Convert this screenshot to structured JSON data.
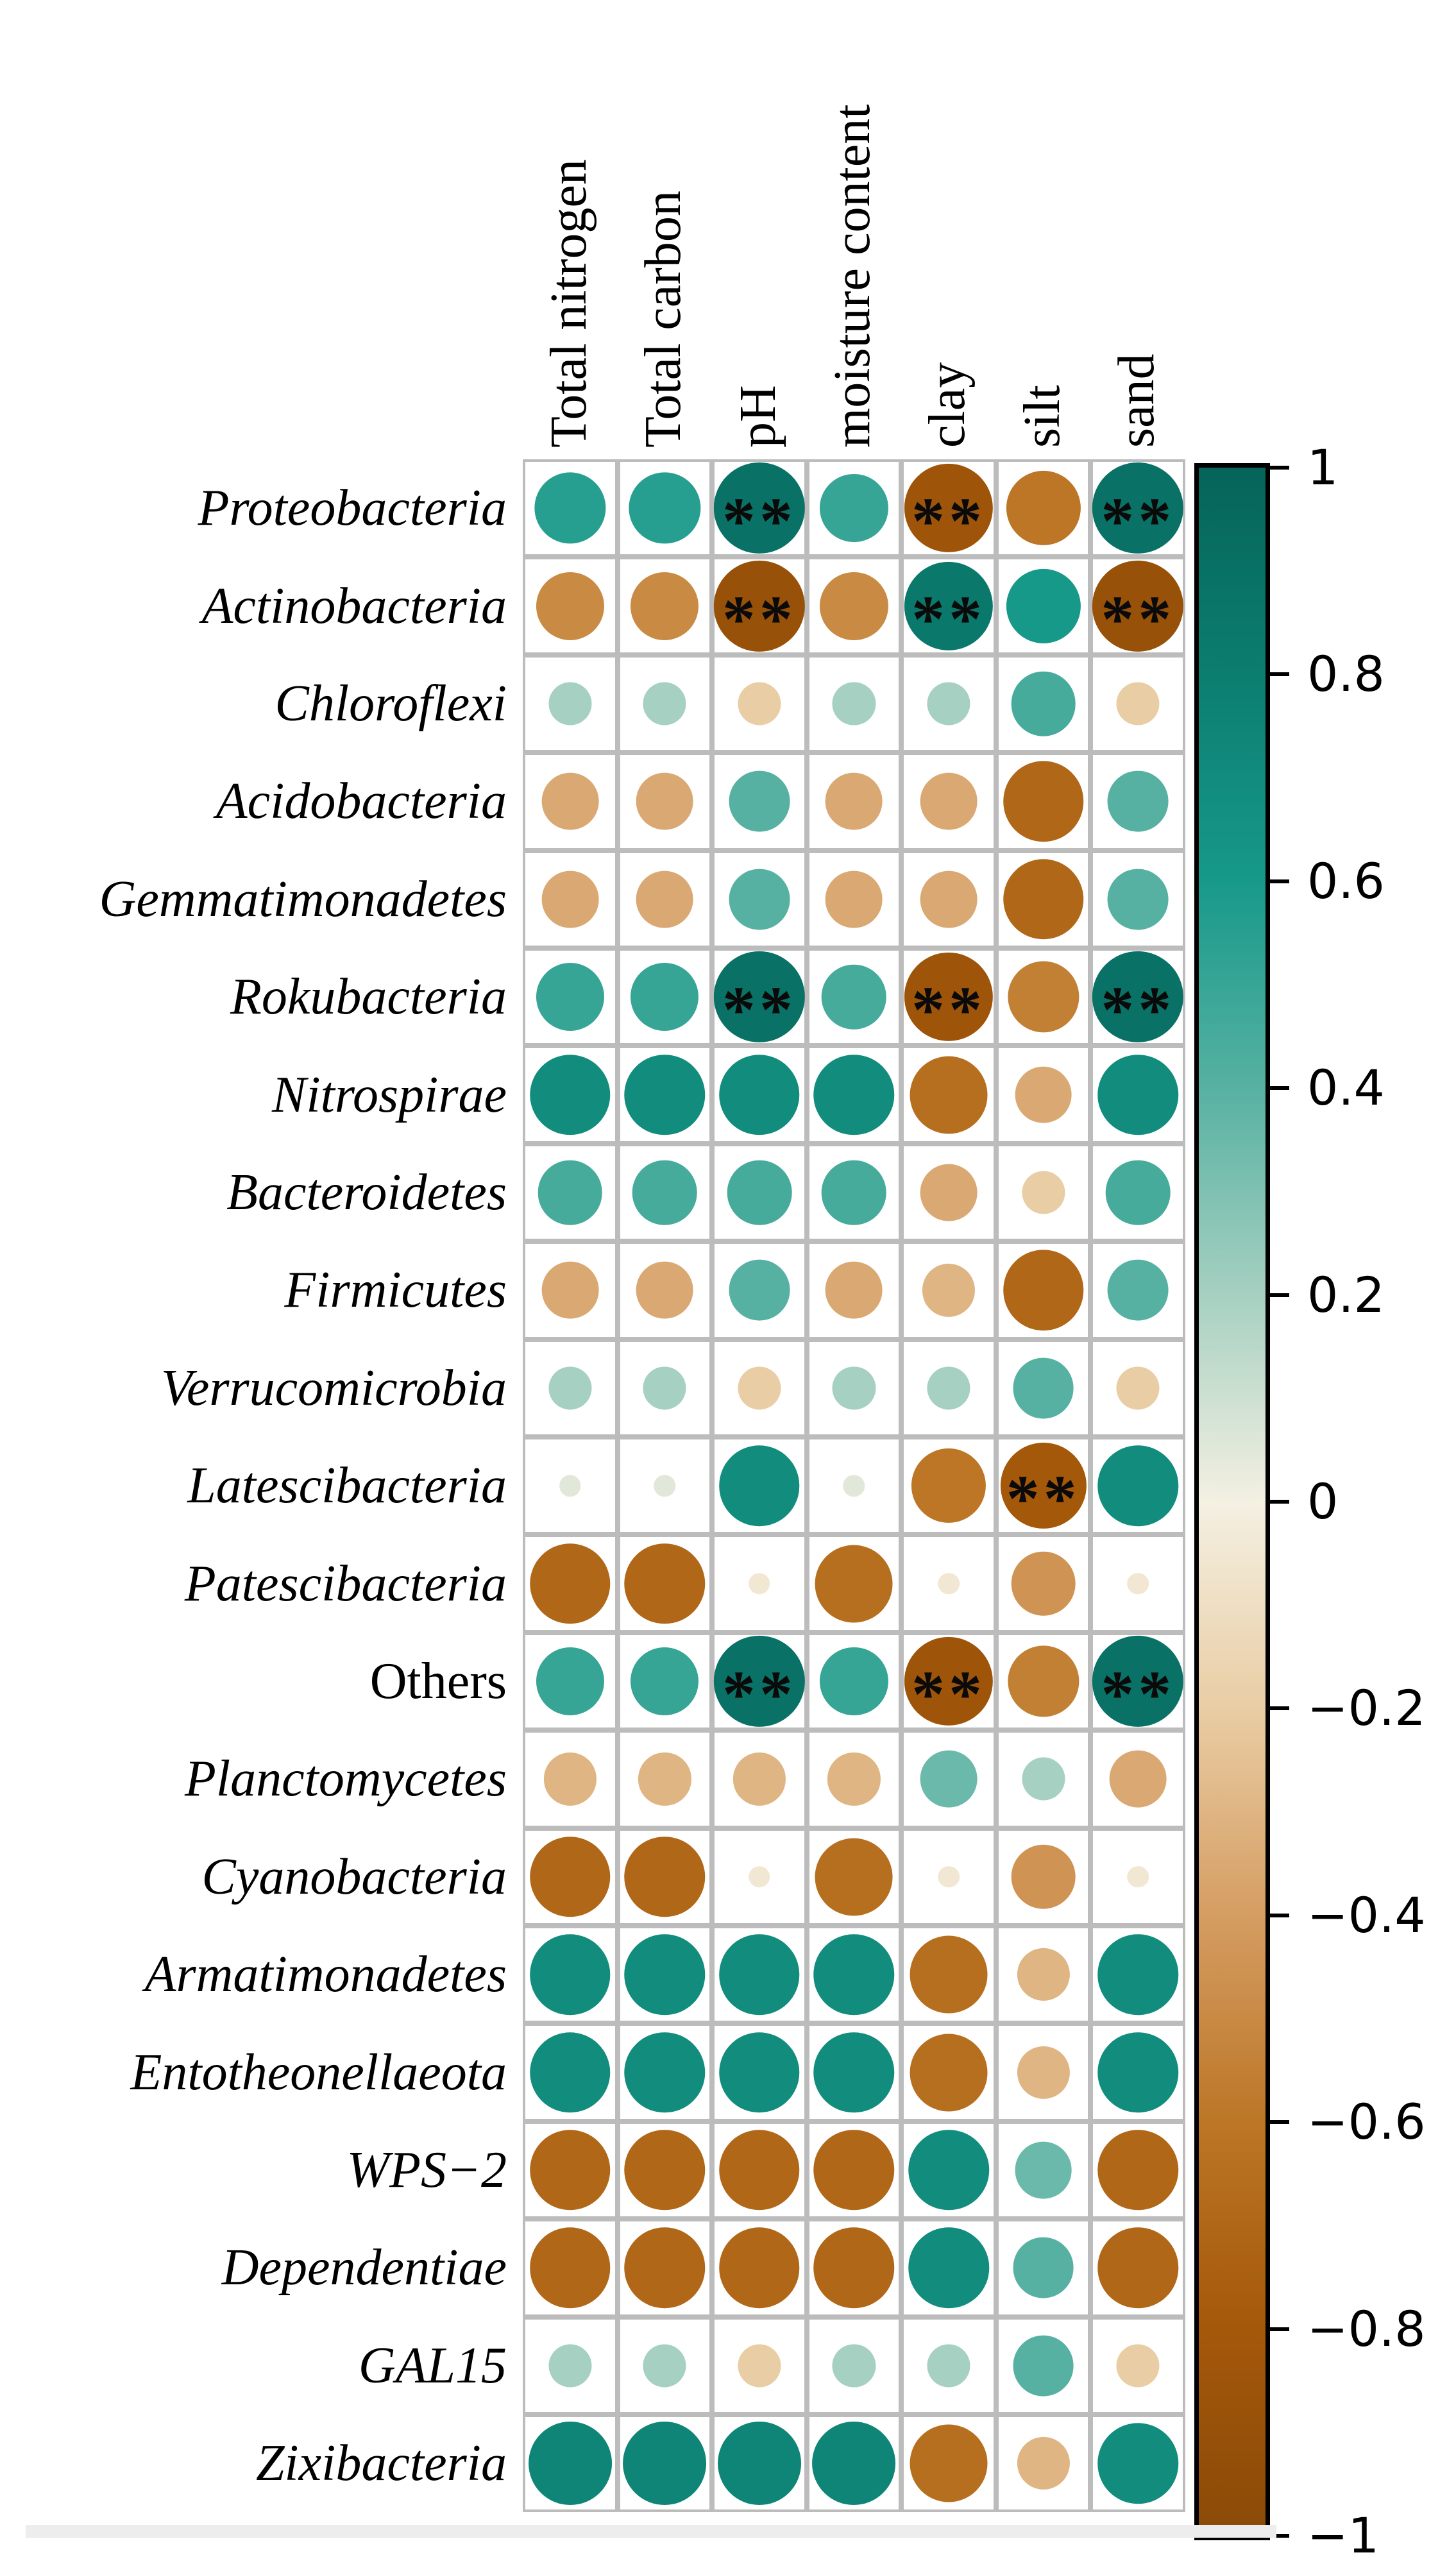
{
  "figure_title": "",
  "chart_data": {
    "type": "heatmap",
    "subtype": "correlation-bubble-matrix",
    "title": "",
    "xlabel": "",
    "ylabel": "",
    "legend_position": "right-colorbar",
    "grid": true,
    "significance_symbol": "**",
    "columns": [
      "Total nitrogen",
      "Total carbon",
      "pH",
      "moisture content",
      "clay",
      "silt",
      "sand"
    ],
    "rows": [
      {
        "label": "Proteobacteria",
        "italic": true,
        "values": [
          0.55,
          0.55,
          0.9,
          0.5,
          -0.85,
          -0.6,
          0.9
        ],
        "sig": [
          false,
          false,
          true,
          false,
          true,
          false,
          true
        ]
      },
      {
        "label": "Actinobacteria",
        "italic": true,
        "values": [
          -0.5,
          -0.5,
          -0.9,
          -0.5,
          0.85,
          0.6,
          -0.9
        ],
        "sig": [
          false,
          false,
          true,
          false,
          true,
          false,
          true
        ]
      },
      {
        "label": "Chloroflexi",
        "italic": true,
        "values": [
          0.2,
          0.2,
          -0.2,
          0.2,
          0.2,
          0.45,
          -0.2
        ],
        "sig": [
          false,
          false,
          false,
          false,
          false,
          false,
          false
        ]
      },
      {
        "label": "Acidobacteria",
        "italic": true,
        "values": [
          -0.35,
          -0.35,
          0.4,
          -0.35,
          -0.35,
          -0.7,
          0.4
        ],
        "sig": [
          false,
          false,
          false,
          false,
          false,
          false,
          false
        ]
      },
      {
        "label": "Gemmatimonadetes",
        "italic": true,
        "values": [
          -0.35,
          -0.35,
          0.4,
          -0.35,
          -0.35,
          -0.7,
          0.4
        ],
        "sig": [
          false,
          false,
          false,
          false,
          false,
          false,
          false
        ]
      },
      {
        "label": "Rokubacteria",
        "italic": true,
        "values": [
          0.5,
          0.5,
          0.9,
          0.45,
          -0.85,
          -0.55,
          0.9
        ],
        "sig": [
          false,
          false,
          true,
          false,
          true,
          false,
          true
        ]
      },
      {
        "label": "Nitrospirae",
        "italic": true,
        "values": [
          0.7,
          0.7,
          0.7,
          0.7,
          -0.65,
          -0.35,
          0.7
        ],
        "sig": [
          false,
          false,
          false,
          false,
          false,
          false,
          false
        ]
      },
      {
        "label": "Bacteroidetes",
        "italic": true,
        "values": [
          0.45,
          0.45,
          0.45,
          0.45,
          -0.35,
          -0.2,
          0.45
        ],
        "sig": [
          false,
          false,
          false,
          false,
          false,
          false,
          false
        ]
      },
      {
        "label": "Firmicutes",
        "italic": true,
        "values": [
          -0.35,
          -0.35,
          0.4,
          -0.35,
          -0.3,
          -0.7,
          0.4
        ],
        "sig": [
          false,
          false,
          false,
          false,
          false,
          false,
          false
        ]
      },
      {
        "label": "Verrucomicrobia",
        "italic": true,
        "values": [
          0.2,
          0.2,
          -0.2,
          0.2,
          0.2,
          0.4,
          -0.2
        ],
        "sig": [
          false,
          false,
          false,
          false,
          false,
          false,
          false
        ]
      },
      {
        "label": "Latescibacteria",
        "italic": true,
        "values": [
          0.05,
          0.05,
          0.7,
          0.05,
          -0.6,
          -0.8,
          0.7
        ],
        "sig": [
          false,
          false,
          false,
          false,
          false,
          true,
          false
        ]
      },
      {
        "label": "Patescibacteria",
        "italic": true,
        "values": [
          -0.7,
          -0.7,
          -0.05,
          -0.65,
          -0.05,
          -0.45,
          -0.05
        ],
        "sig": [
          false,
          false,
          false,
          false,
          false,
          false,
          false
        ]
      },
      {
        "label": "Others",
        "italic": false,
        "values": [
          0.5,
          0.5,
          0.9,
          0.5,
          -0.85,
          -0.55,
          0.9
        ],
        "sig": [
          false,
          false,
          true,
          false,
          true,
          false,
          true
        ]
      },
      {
        "label": "Planctomycetes",
        "italic": true,
        "values": [
          -0.3,
          -0.3,
          -0.3,
          -0.3,
          0.35,
          0.2,
          -0.35
        ],
        "sig": [
          false,
          false,
          false,
          false,
          false,
          false,
          false
        ]
      },
      {
        "label": "Cyanobacteria",
        "italic": true,
        "values": [
          -0.7,
          -0.7,
          -0.05,
          -0.65,
          -0.05,
          -0.45,
          -0.05
        ],
        "sig": [
          false,
          false,
          false,
          false,
          false,
          false,
          false
        ]
      },
      {
        "label": "Armatimonadetes",
        "italic": true,
        "values": [
          0.7,
          0.7,
          0.7,
          0.7,
          -0.65,
          -0.3,
          0.7
        ],
        "sig": [
          false,
          false,
          false,
          false,
          false,
          false,
          false
        ]
      },
      {
        "label": "Entotheonellaeota",
        "italic": true,
        "values": [
          0.7,
          0.7,
          0.7,
          0.7,
          -0.65,
          -0.3,
          0.7
        ],
        "sig": [
          false,
          false,
          false,
          false,
          false,
          false,
          false
        ]
      },
      {
        "label": "WPS−2",
        "italic": true,
        "values": [
          -0.7,
          -0.7,
          -0.7,
          -0.7,
          0.7,
          0.35,
          -0.7
        ],
        "sig": [
          false,
          false,
          false,
          false,
          false,
          false,
          false
        ]
      },
      {
        "label": "Dependentiae",
        "italic": true,
        "values": [
          -0.7,
          -0.7,
          -0.7,
          -0.7,
          0.7,
          0.4,
          -0.7
        ],
        "sig": [
          false,
          false,
          false,
          false,
          false,
          false,
          false
        ]
      },
      {
        "label": "GAL15",
        "italic": true,
        "values": [
          0.2,
          0.2,
          -0.2,
          0.2,
          0.2,
          0.4,
          -0.2
        ],
        "sig": [
          false,
          false,
          false,
          false,
          false,
          false,
          false
        ]
      },
      {
        "label": "Zixibacteria",
        "italic": true,
        "values": [
          0.75,
          0.75,
          0.75,
          0.75,
          -0.65,
          -0.3,
          0.7
        ],
        "sig": [
          false,
          false,
          false,
          false,
          false,
          false,
          false
        ]
      }
    ],
    "colorbar": {
      "tick_labels": [
        "1",
        "0.8",
        "0.6",
        "0.4",
        "0.2",
        "0",
        "−0.2",
        "−0.4",
        "−0.6",
        "−0.8",
        "−1"
      ],
      "tick_values": [
        1,
        0.8,
        0.6,
        0.4,
        0.2,
        0,
        -0.2,
        -0.4,
        -0.6,
        -0.8,
        -1
      ],
      "range": [
        -1,
        1
      ]
    },
    "palette_anchors": [
      {
        "v": 1.0,
        "hex": "#06645A"
      },
      {
        "v": 0.8,
        "hex": "#0B7E70"
      },
      {
        "v": 0.6,
        "hex": "#17998A"
      },
      {
        "v": 0.4,
        "hex": "#57B1A2"
      },
      {
        "v": 0.2,
        "hex": "#A6D0C1"
      },
      {
        "v": 0.0,
        "hex": "#F4F0E2"
      },
      {
        "v": -0.2,
        "hex": "#E9CDA4"
      },
      {
        "v": -0.4,
        "hex": "#D59D62"
      },
      {
        "v": -0.6,
        "hex": "#BC7626"
      },
      {
        "v": -0.8,
        "hex": "#A4580A"
      },
      {
        "v": -1.0,
        "hex": "#8A4A08"
      }
    ],
    "colors": {
      "grid_line": "#bcbcbc",
      "cell_background": "#ffffff",
      "significance_mark": "#0a0a0a",
      "colorbar_border": "#000000",
      "text": "#000000"
    }
  }
}
